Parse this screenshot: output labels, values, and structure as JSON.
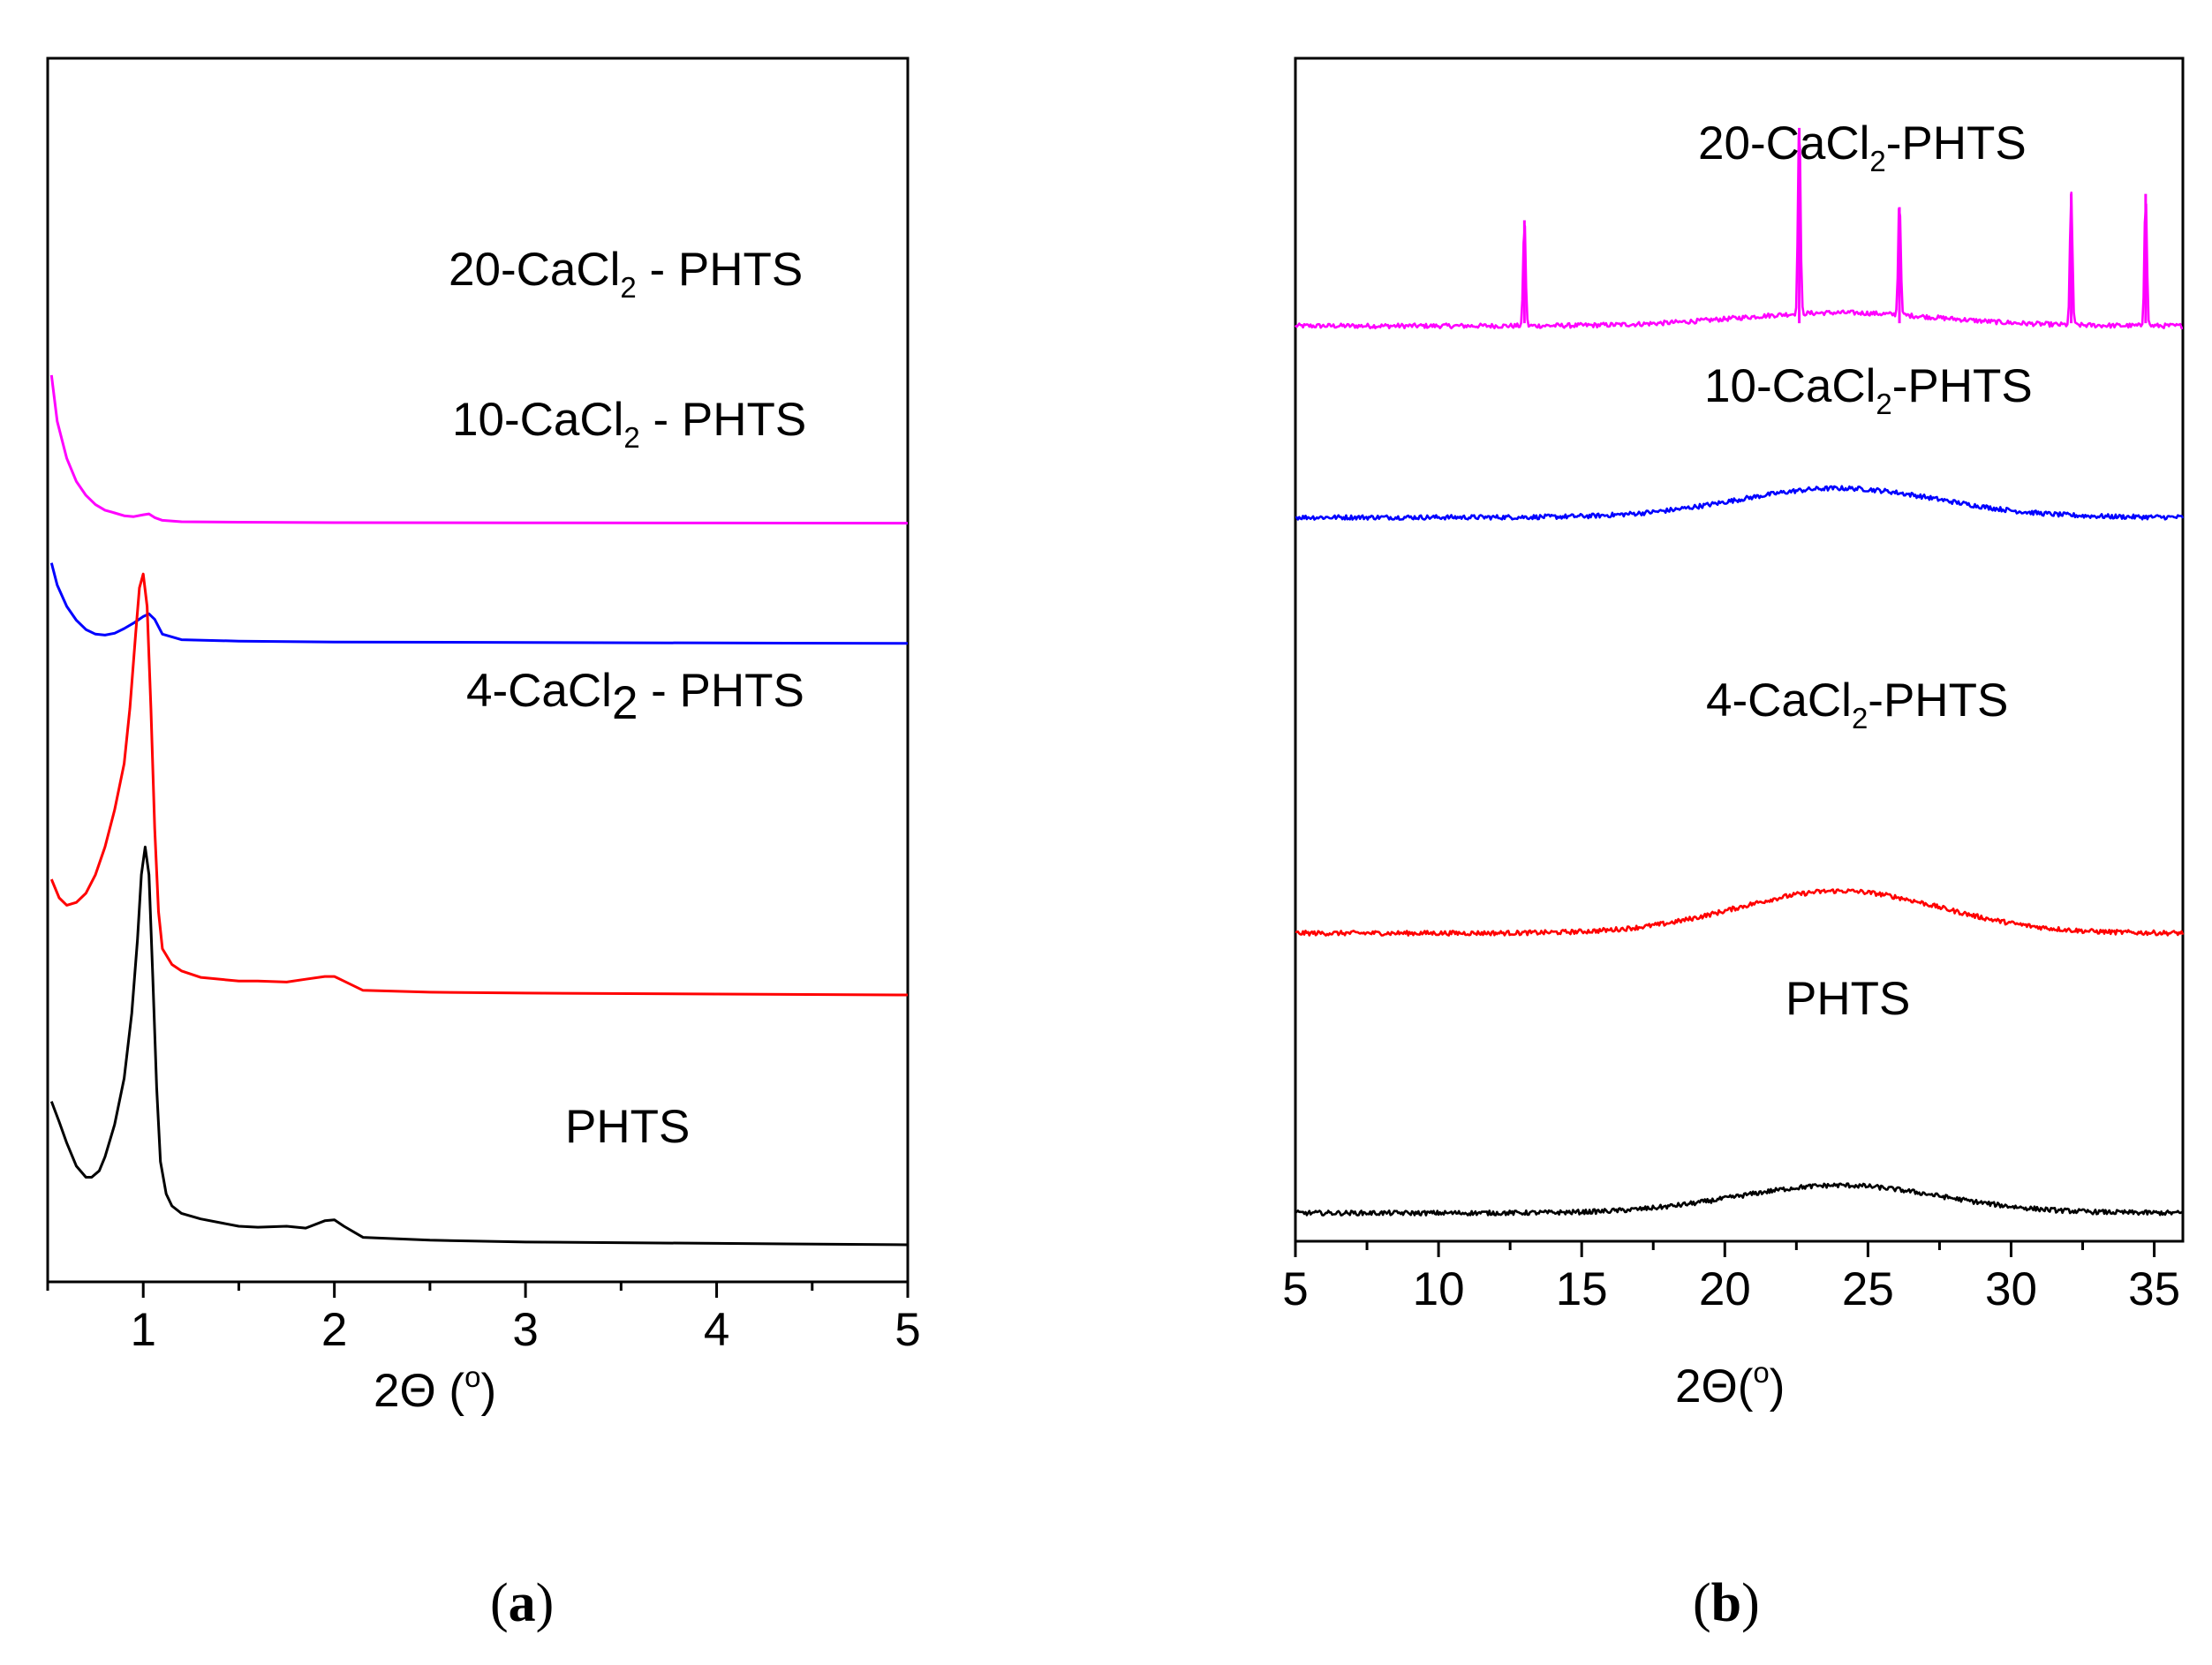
{
  "chart_data": [
    {
      "panel": "a",
      "type": "line",
      "caption": {
        "open": "(",
        "letter": "a",
        "close": ")"
      },
      "xlabel": "2Θ (°)",
      "xlabel_parts": {
        "main": "2Θ (",
        "sup": "o",
        "end": ")"
      },
      "ylabel": "",
      "xlim": [
        0.5,
        5
      ],
      "xticks": [
        "1",
        "2",
        "3",
        "4",
        "5"
      ],
      "xtick_values": [
        1,
        2,
        3,
        4,
        5
      ],
      "yticks": [],
      "grid": false,
      "series": [
        {
          "name": "20-CaCl2 - PHTS",
          "label_parts": {
            "pre": "20-CaCl",
            "sub": "2",
            "post": " - PHTS"
          },
          "color": "#ff00ff",
          "offset": 78,
          "x": [
            0.52,
            0.55,
            0.6,
            0.65,
            0.7,
            0.75,
            0.8,
            0.85,
            0.9,
            0.95,
            1.0,
            1.03,
            1.06,
            1.1,
            1.2,
            1.5,
            2.0,
            3.0,
            4.0,
            5.0
          ],
          "y": [
            16,
            11,
            7,
            4.5,
            3,
            2,
            1.4,
            1.1,
            0.8,
            0.7,
            0.9,
            1.0,
            0.6,
            0.3,
            0.15,
            0.1,
            0.05,
            0.03,
            0.02,
            0
          ]
        },
        {
          "name": "10-CaCl2 - PHTS",
          "label_parts": {
            "pre": "10-CaCl",
            "sub": "2",
            "post": " - PHTS"
          },
          "color": "#0000ff",
          "offset": 65,
          "x": [
            0.52,
            0.55,
            0.6,
            0.65,
            0.7,
            0.75,
            0.8,
            0.85,
            0.9,
            0.95,
            1.0,
            1.03,
            1.06,
            1.1,
            1.2,
            1.5,
            2.0,
            3.0,
            4.0,
            5.0
          ],
          "y": [
            8.7,
            6.3,
            4,
            2.5,
            1.5,
            1.0,
            0.9,
            1.1,
            1.6,
            2.2,
            2.9,
            3.2,
            2.6,
            1.0,
            0.4,
            0.25,
            0.15,
            0.1,
            0.05,
            0
          ]
        },
        {
          "name": "4-CaCl2 - PHTS",
          "label_parts": {
            "pre": "4-CaCl",
            "sub": "2",
            "post": " - PHTS"
          },
          "color": "#ff0000",
          "offset": 27,
          "x": [
            0.52,
            0.56,
            0.6,
            0.65,
            0.7,
            0.75,
            0.8,
            0.85,
            0.9,
            0.93,
            0.96,
            0.98,
            1.0,
            1.02,
            1.04,
            1.06,
            1.08,
            1.1,
            1.15,
            1.2,
            1.3,
            1.5,
            1.6,
            1.75,
            1.85,
            1.95,
            2.0,
            2.05,
            2.15,
            2.5,
            3.0,
            4.0,
            5.0
          ],
          "y": [
            12.5,
            10.5,
            9.7,
            10,
            11,
            13,
            16,
            20,
            25,
            31,
            39,
            44,
            45.5,
            42,
            31,
            18,
            9,
            5,
            3.3,
            2.6,
            1.9,
            1.5,
            1.5,
            1.4,
            1.7,
            2.0,
            2.0,
            1.5,
            0.5,
            0.3,
            0.2,
            0.1,
            0
          ]
        },
        {
          "name": "PHTS",
          "label_parts": {
            "pre": "PHTS",
            "sub": "",
            "post": ""
          },
          "color": "#000000",
          "offset": 0,
          "x": [
            0.52,
            0.56,
            0.6,
            0.65,
            0.7,
            0.73,
            0.77,
            0.8,
            0.85,
            0.9,
            0.94,
            0.97,
            0.99,
            1.01,
            1.03,
            1.05,
            1.07,
            1.09,
            1.12,
            1.15,
            1.2,
            1.3,
            1.5,
            1.6,
            1.75,
            1.85,
            1.95,
            2.0,
            2.05,
            2.15,
            2.5,
            3.0,
            4.0,
            5.0
          ],
          "y": [
            15.5,
            13.3,
            11,
            8.5,
            7.3,
            7.3,
            8,
            9.5,
            13,
            18,
            25,
            33,
            40,
            43,
            40,
            29,
            17,
            9,
            5.5,
            4.2,
            3.4,
            2.8,
            2.0,
            1.9,
            2.0,
            1.8,
            2.6,
            2.7,
            2.0,
            0.8,
            0.5,
            0.3,
            0.15,
            0
          ]
        }
      ]
    },
    {
      "panel": "b",
      "type": "line",
      "caption": {
        "open": "(",
        "letter": "b",
        "close": ")"
      },
      "xlabel": "2Θ(°)",
      "xlabel_parts": {
        "main": "2Θ(",
        "sup": "o",
        "end": ")"
      },
      "ylabel": "",
      "xlim": [
        5,
        36
      ],
      "xticks": [
        "5",
        "10",
        "15",
        "20",
        "25",
        "30",
        "35"
      ],
      "xtick_values": [
        5,
        10,
        15,
        20,
        25,
        30,
        35
      ],
      "yticks": [],
      "grid": false,
      "series": [
        {
          "name": "20-CaCl2-PHTS",
          "label_parts": {
            "pre": "20-CaCl",
            "sub": "2",
            "post": "-PHTS"
          },
          "color": "#ff00ff",
          "baseline": 68,
          "noise": 0.35,
          "hump": {
            "center": 24,
            "width": 5,
            "height": 1.0
          },
          "peaks": [
            {
              "x": 13,
              "h": 8
            },
            {
              "x": 22.6,
              "h": 15
            },
            {
              "x": 26.1,
              "h": 9
            },
            {
              "x": 32.1,
              "h": 10
            },
            {
              "x": 34.7,
              "h": 10
            }
          ]
        },
        {
          "name": "10-CaCl2-PHTS",
          "label_parts": {
            "pre": "10-CaCl",
            "sub": "2",
            "post": "-PHTS"
          },
          "color": "#0000ff",
          "baseline": 53.5,
          "noise": 0.35,
          "hump": {
            "center": 24,
            "width": 5,
            "height": 2.2
          },
          "peaks": []
        },
        {
          "name": "4-CaCl2-PHTS",
          "label_parts": {
            "pre": "4-CaCl",
            "sub": "2",
            "post": "-PHTS"
          },
          "color": "#ff0000",
          "baseline": 22,
          "noise": 0.35,
          "hump": {
            "center": 24,
            "width": 5,
            "height": 3.2
          },
          "peaks": []
        },
        {
          "name": "PHTS",
          "label_parts": {
            "pre": "PHTS",
            "sub": "",
            "post": ""
          },
          "color": "#000000",
          "baseline": 0.8,
          "noise": 0.35,
          "hump": {
            "center": 24,
            "width": 5,
            "height": 2.1
          },
          "peaks": []
        }
      ]
    }
  ]
}
